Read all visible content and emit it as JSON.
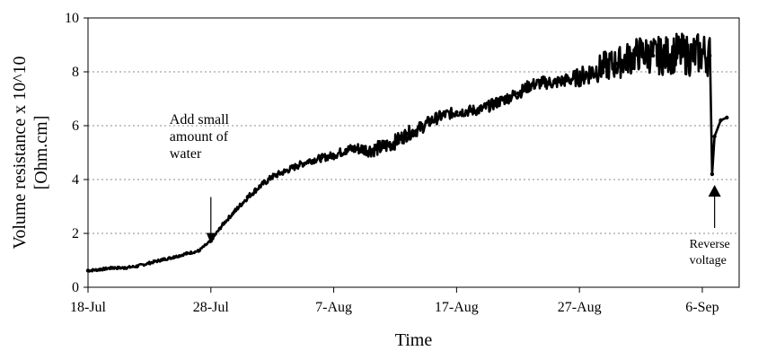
{
  "chart_data": {
    "type": "line",
    "title": "",
    "xlabel": "Time",
    "ylabel_lines": [
      "Volume resistance x 10^10",
      "[Ohm.cm]"
    ],
    "x_unit": "date",
    "year": 2000,
    "xlim": [
      "2000-07-18",
      "2000-09-09"
    ],
    "ylim": [
      0,
      10
    ],
    "y_ticks": [
      0,
      2,
      4,
      6,
      8,
      10
    ],
    "x_ticks": [
      {
        "date": "2000-07-18",
        "label": "18-Jul"
      },
      {
        "date": "2000-07-28",
        "label": "28-Jul"
      },
      {
        "date": "2000-08-07",
        "label": "7-Aug"
      },
      {
        "date": "2000-08-17",
        "label": "17-Aug"
      },
      {
        "date": "2000-08-27",
        "label": "27-Aug"
      },
      {
        "date": "2000-09-06",
        "label": "6-Sep"
      }
    ],
    "grid": {
      "horizontal": true,
      "vertical": false,
      "style": "dashed"
    },
    "legend": "none",
    "line_color": "#000000",
    "series": [
      {
        "values": [
          [
            "2000-07-18",
            0.62
          ],
          [
            "2000-07-19",
            0.66
          ],
          [
            "2000-07-20",
            0.72
          ],
          [
            "2000-07-21",
            0.72
          ],
          [
            "2000-07-22",
            0.78
          ],
          [
            "2000-07-23",
            0.9
          ],
          [
            "2000-07-24",
            1.02
          ],
          [
            "2000-07-25",
            1.12
          ],
          [
            "2000-07-26",
            1.25
          ],
          [
            "2000-07-27",
            1.35
          ],
          [
            "2000-07-28",
            1.72
          ],
          [
            "2000-07-29",
            2.35
          ],
          [
            "2000-07-30",
            2.85
          ],
          [
            "2000-07-31",
            3.35
          ],
          [
            "2000-08-01",
            3.75
          ],
          [
            "2000-08-02",
            4.1
          ],
          [
            "2000-08-03",
            4.3
          ],
          [
            "2000-08-04",
            4.5
          ],
          [
            "2000-08-05",
            4.7
          ],
          [
            "2000-08-06",
            4.8
          ],
          [
            "2000-08-07",
            4.9
          ],
          [
            "2000-08-08",
            5.1
          ],
          [
            "2000-08-09",
            5.15
          ],
          [
            "2000-08-10",
            5.1
          ],
          [
            "2000-08-11",
            5.2
          ],
          [
            "2000-08-12",
            5.4
          ],
          [
            "2000-08-13",
            5.7
          ],
          [
            "2000-08-14",
            5.9
          ],
          [
            "2000-08-15",
            6.2
          ],
          [
            "2000-08-16",
            6.4
          ],
          [
            "2000-08-17",
            6.5
          ],
          [
            "2000-08-18",
            6.55
          ],
          [
            "2000-08-19",
            6.6
          ],
          [
            "2000-08-20",
            6.8
          ],
          [
            "2000-08-21",
            7.0
          ],
          [
            "2000-08-22",
            7.2
          ],
          [
            "2000-08-23",
            7.5
          ],
          [
            "2000-08-24",
            7.6
          ],
          [
            "2000-08-25",
            7.6
          ],
          [
            "2000-08-26",
            7.7
          ],
          [
            "2000-08-27",
            7.8
          ],
          [
            "2000-08-28",
            8.0
          ],
          [
            "2000-08-29",
            8.2
          ],
          [
            "2000-08-30",
            8.3
          ],
          [
            "2000-08-31",
            8.5
          ],
          [
            "2000-09-01",
            8.7
          ],
          [
            "2000-09-02",
            8.6
          ],
          [
            "2000-09-03",
            8.6
          ],
          [
            "2000-09-04",
            8.7
          ],
          [
            "2000-09-05",
            8.6
          ],
          [
            "2000-09-06",
            8.7
          ],
          [
            "2000-09-06.6",
            8.6
          ],
          [
            "2000-09-06.8",
            4.2
          ],
          [
            "2000-09-07",
            5.6
          ],
          [
            "2000-09-07.5",
            6.2
          ],
          [
            "2000-09-08",
            6.3
          ]
        ],
        "noise_band": [
          [
            "2000-07-18",
            0.05
          ],
          [
            "2000-07-28",
            0.05
          ],
          [
            "2000-07-31",
            0.1
          ],
          [
            "2000-08-07",
            0.15
          ],
          [
            "2000-08-11",
            0.3
          ],
          [
            "2000-08-17",
            0.2
          ],
          [
            "2000-08-26",
            0.25
          ],
          [
            "2000-08-29",
            0.55
          ],
          [
            "2000-09-02",
            0.7
          ],
          [
            "2000-09-06",
            0.8
          ]
        ]
      }
    ],
    "annotations": [
      {
        "id": "water",
        "text_lines": [
          "Add small",
          "amount of",
          "water"
        ],
        "arrow": "down",
        "date": "2000-07-28",
        "value": 1.35
      },
      {
        "id": "reverse",
        "text_lines": [
          "Reverse",
          "voltage"
        ],
        "arrow": "up",
        "date": "2000-09-07",
        "value": 4.2
      }
    ]
  }
}
